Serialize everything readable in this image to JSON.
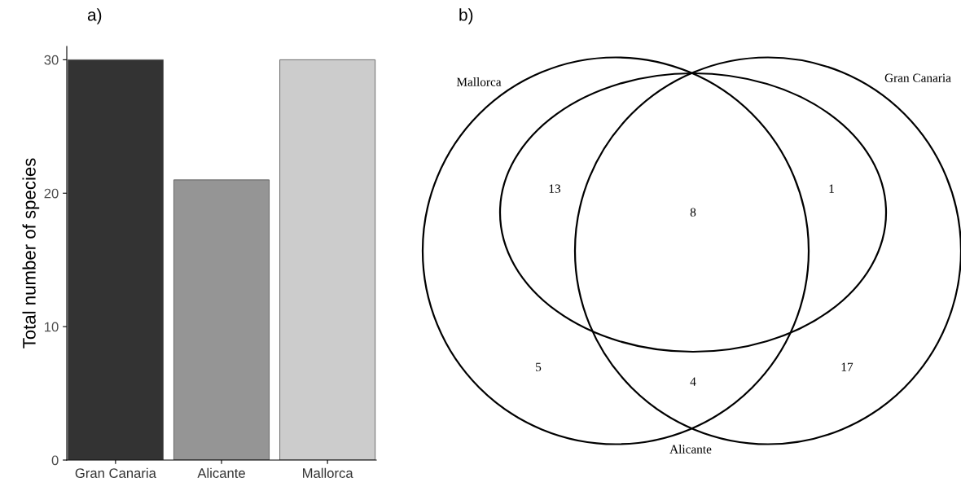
{
  "chart_data": [
    {
      "type": "bar",
      "title": "a)",
      "ylabel": "Total number of species",
      "categories": [
        "Gran Canaria",
        "Alicante",
        "Mallorca"
      ],
      "values": [
        30,
        21,
        30
      ],
      "colors": [
        "#333333",
        "#959595",
        "#cccccc"
      ],
      "ylim": [
        0,
        31
      ],
      "yticks": [
        0,
        10,
        20,
        30
      ],
      "grid": false,
      "legend": false
    },
    {
      "type": "other",
      "title": "b)",
      "annotations": [
        "Mallorca",
        "Gran Canaria",
        "Alicante",
        "13",
        "8",
        "1",
        "5",
        "4",
        "17"
      ]
    }
  ]
}
